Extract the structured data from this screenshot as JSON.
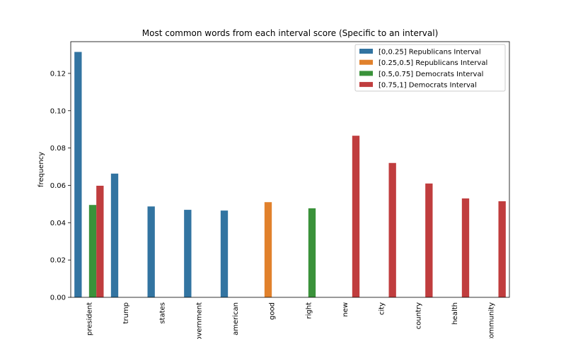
{
  "chart_data": {
    "type": "bar",
    "title": "Most common words from each interval score (Specific to an interval)",
    "xlabel": "",
    "ylabel": "frequency",
    "ylim": [
      0,
      0.137
    ],
    "yticks": [
      0.0,
      0.02,
      0.04,
      0.06,
      0.08,
      0.1,
      0.12
    ],
    "ytick_labels": [
      "0.00",
      "0.02",
      "0.04",
      "0.06",
      "0.08",
      "0.10",
      "0.12"
    ],
    "categories": [
      "president",
      "trump",
      "states",
      "government",
      "american",
      "good",
      "right",
      "new",
      "city",
      "country",
      "health",
      "community"
    ],
    "legend_position": "top-right",
    "grid": false,
    "series": [
      {
        "name": "[0,0.25] Republicans Interval",
        "color": "#3274a1",
        "values": [
          0.1315,
          0.0663,
          0.0487,
          0.0469,
          0.0465,
          null,
          null,
          null,
          null,
          null,
          null,
          null
        ]
      },
      {
        "name": "[0.25,0.5] Republicans Interval",
        "color": "#e1812c",
        "values": [
          null,
          null,
          null,
          null,
          null,
          0.051,
          null,
          null,
          null,
          null,
          null,
          null
        ]
      },
      {
        "name": "[0.5,0.75] Democrats Interval",
        "color": "#3a923a",
        "values": [
          0.0495,
          null,
          null,
          null,
          null,
          null,
          0.0477,
          null,
          null,
          null,
          null,
          null
        ]
      },
      {
        "name": "[0.75,1] Democrats Interval",
        "color": "#c03d3e",
        "values": [
          0.0598,
          null,
          null,
          null,
          null,
          null,
          null,
          0.0866,
          0.072,
          0.061,
          0.053,
          0.0515
        ]
      }
    ]
  }
}
